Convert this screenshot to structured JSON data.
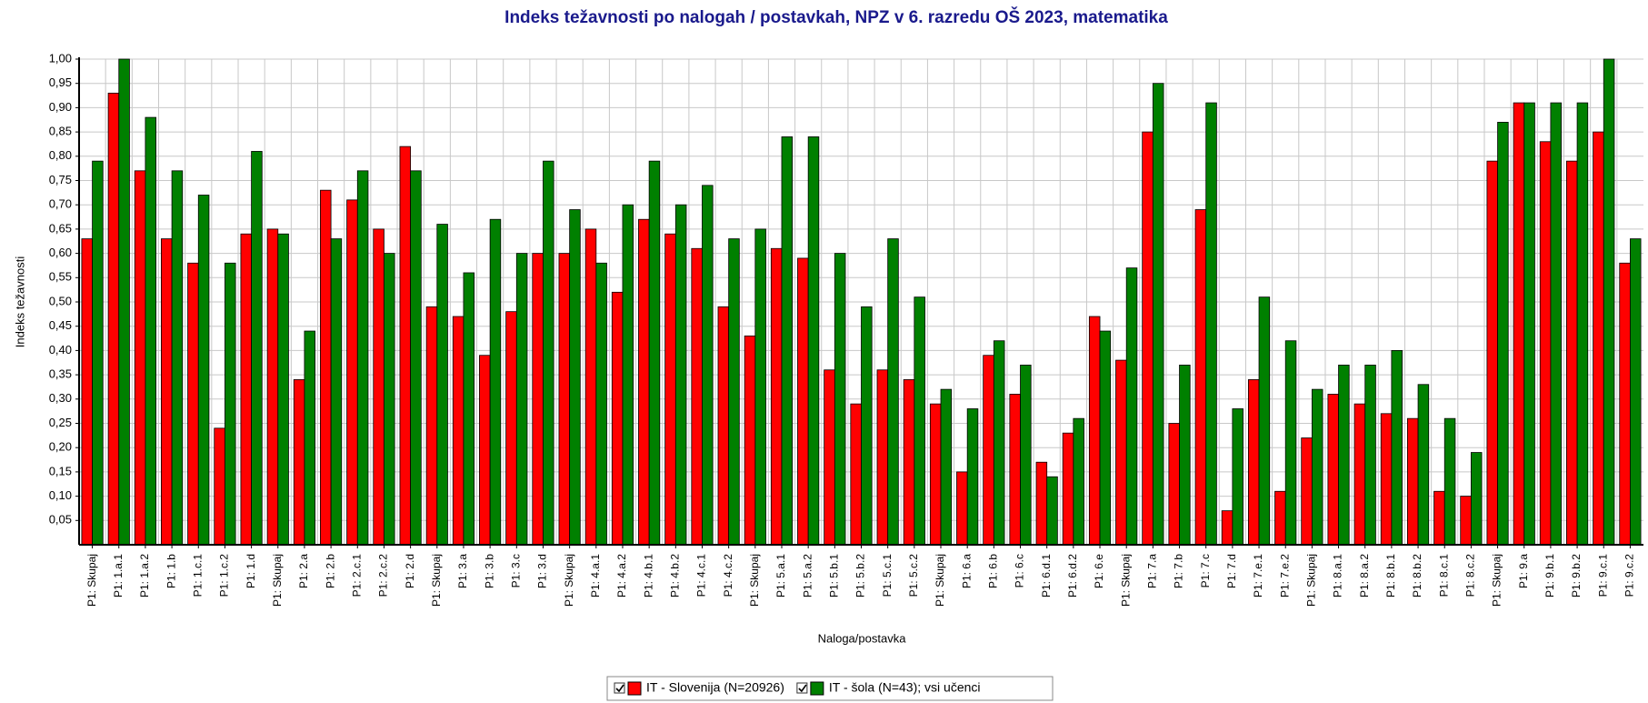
{
  "chart_data": {
    "type": "bar",
    "title": "Indeks težavnosti po nalogah / postavkah, NPZ v 6. razredu OŠ 2023, matematika",
    "x_label": "Naloga/postavka",
    "y_label": "Indeks težavnosti",
    "categories": [
      "P1: Skupaj",
      "P1: 1.a.1",
      "P1: 1.a.2",
      "P1: 1.b",
      "P1: 1.c.1",
      "P1: 1.c.2",
      "P1: 1.d",
      "P1: Skupaj",
      "P1: 2.a",
      "P1: 2.b",
      "P1: 2.c.1",
      "P1: 2.c.2",
      "P1: 2.d",
      "P1: Skupaj",
      "P1: 3.a",
      "P1: 3.b",
      "P1: 3.c",
      "P1: 3.d",
      "P1: Skupaj",
      "P1: 4.a.1",
      "P1: 4.a.2",
      "P1: 4.b.1",
      "P1: 4.b.2",
      "P1: 4.c.1",
      "P1: 4.c.2",
      "P1: Skupaj",
      "P1: 5.a.1",
      "P1: 5.a.2",
      "P1: 5.b.1",
      "P1: 5.b.2",
      "P1: 5.c.1",
      "P1: 5.c.2",
      "P1: Skupaj",
      "P1: 6.a",
      "P1: 6.b",
      "P1: 6.c",
      "P1: 6.d.1",
      "P1: 6.d.2",
      "P1: 6.e",
      "P1: Skupaj",
      "P1: 7.a",
      "P1: 7.b",
      "P1: 7.c",
      "P1: 7.d",
      "P1: 7.e.1",
      "P1: 7.e.2",
      "P1: Skupaj",
      "P1: 8.a.1",
      "P1: 8.a.2",
      "P1: 8.b.1",
      "P1: 8.b.2",
      "P1: 8.c.1",
      "P1: 8.c.2",
      "P1: Skupaj",
      "P1: 9.a",
      "P1: 9.b.1",
      "P1: 9.b.2",
      "P1: 9.c.1",
      "P1: 9.c.2"
    ],
    "series": [
      {
        "name": "IT - Slovenija (N=20926)",
        "color": "#ff0000",
        "values": [
          0.63,
          0.93,
          0.77,
          0.63,
          0.58,
          0.24,
          0.64,
          0.65,
          0.34,
          0.73,
          0.71,
          0.65,
          0.82,
          0.49,
          0.47,
          0.39,
          0.48,
          0.6,
          0.6,
          0.65,
          0.52,
          0.67,
          0.64,
          0.61,
          0.49,
          0.43,
          0.61,
          0.59,
          0.36,
          0.29,
          0.36,
          0.34,
          0.29,
          0.15,
          0.39,
          0.31,
          0.17,
          0.23,
          0.47,
          0.38,
          0.85,
          0.25,
          0.69,
          0.07,
          0.34,
          0.11,
          0.22,
          0.31,
          0.29,
          0.27,
          0.26,
          0.11,
          0.1,
          0.79,
          0.91,
          0.83,
          0.79,
          0.85,
          0.58
        ]
      },
      {
        "name": "IT - šola (N=43); vsi učenci",
        "color": "#008000",
        "values": [
          0.79,
          1.0,
          0.88,
          0.77,
          0.72,
          0.58,
          0.81,
          0.64,
          0.44,
          0.63,
          0.77,
          0.6,
          0.77,
          0.66,
          0.56,
          0.67,
          0.6,
          0.79,
          0.69,
          0.58,
          0.7,
          0.79,
          0.7,
          0.74,
          0.63,
          0.65,
          0.84,
          0.84,
          0.6,
          0.49,
          0.63,
          0.51,
          0.32,
          0.28,
          0.42,
          0.37,
          0.14,
          0.26,
          0.44,
          0.57,
          0.95,
          0.37,
          0.91,
          0.28,
          0.51,
          0.42,
          0.32,
          0.37,
          0.37,
          0.4,
          0.33,
          0.26,
          0.19,
          0.87,
          0.91,
          0.91,
          0.91,
          1.0,
          0.63
        ]
      }
    ],
    "ylim": [
      0,
      1
    ],
    "yticks": [
      {
        "value": 0.05,
        "label": "0,05"
      },
      {
        "value": 0.1,
        "label": "0,10"
      },
      {
        "value": 0.15,
        "label": "0,15"
      },
      {
        "value": 0.2,
        "label": "0,20"
      },
      {
        "value": 0.25,
        "label": "0,25"
      },
      {
        "value": 0.3,
        "label": "0,30"
      },
      {
        "value": 0.35,
        "label": "0,35"
      },
      {
        "value": 0.4,
        "label": "0,40"
      },
      {
        "value": 0.45,
        "label": "0,45"
      },
      {
        "value": 0.5,
        "label": "0,50"
      },
      {
        "value": 0.55,
        "label": "0,55"
      },
      {
        "value": 0.6,
        "label": "0,60"
      },
      {
        "value": 0.65,
        "label": "0,65"
      },
      {
        "value": 0.7,
        "label": "0,70"
      },
      {
        "value": 0.75,
        "label": "0,75"
      },
      {
        "value": 0.8,
        "label": "0,80"
      },
      {
        "value": 0.85,
        "label": "0,85"
      },
      {
        "value": 0.9,
        "label": "0,90"
      },
      {
        "value": 0.95,
        "label": "0,95"
      },
      {
        "value": 1.0,
        "label": "1,00"
      }
    ],
    "grid": true
  }
}
